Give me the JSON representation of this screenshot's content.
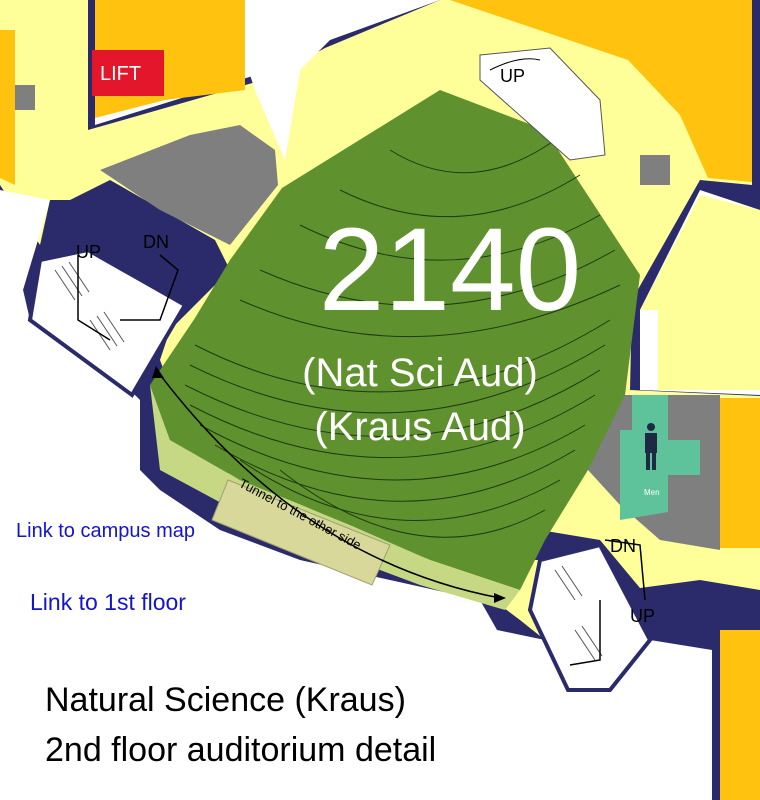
{
  "room": {
    "number": "2140",
    "alias_1": "(Nat Sci Aud)",
    "alias_2": "(Kraus Aud)"
  },
  "labels": {
    "lift": "LIFT",
    "up": "UP",
    "dn": "DN",
    "men": "Men",
    "tunnel": "Tunnel to the other side"
  },
  "links": {
    "campus_map": "Link to campus map",
    "first_floor": "Link to 1st floor"
  },
  "caption": {
    "line_1": "Natural Science (Kraus)",
    "line_2": "2nd floor auditorium detail"
  },
  "colors": {
    "hallway": "#ffff99",
    "room_orange": "#ffc20e",
    "auditorium": "#5f922e",
    "tunnel": "#c6d884",
    "restroom": "#5ec39b",
    "service": "#7f7f7f",
    "wall": "#2b2b6b",
    "lift": "#e4162b",
    "link": "#1414c8"
  },
  "icons": {
    "restroom": "person-icon",
    "stairs": "staircase-icon"
  }
}
